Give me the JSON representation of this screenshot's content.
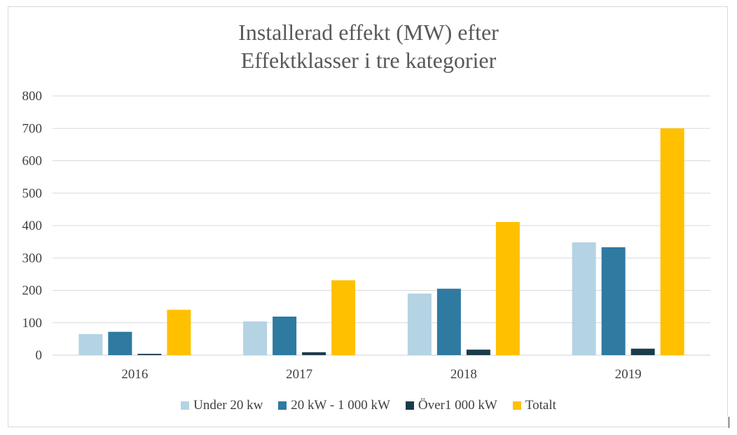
{
  "chart_data": {
    "type": "bar",
    "title_lines": [
      "Installerad effekt (MW) efter",
      "Effektklasser i tre kategorier"
    ],
    "categories": [
      "2016",
      "2017",
      "2018",
      "2019"
    ],
    "series": [
      {
        "name": "Under 20 kw",
        "color": "#b4d3e3",
        "values": [
          65,
          104,
          190,
          348
        ]
      },
      {
        "name": "20 kW - 1 000 kW",
        "color": "#2e7aa1",
        "values": [
          72,
          119,
          205,
          333
        ]
      },
      {
        "name": "Över1 000 kW",
        "color": "#1c3c4b",
        "values": [
          4,
          9,
          17,
          20
        ]
      },
      {
        "name": "Totalt",
        "color": "#ffc000",
        "values": [
          140,
          231,
          411,
          700
        ]
      }
    ],
    "ylim": [
      0,
      800
    ],
    "yticks": [
      0,
      100,
      200,
      300,
      400,
      500,
      600,
      700,
      800
    ],
    "grid": true,
    "legend_position": "bottom",
    "xlabel": "",
    "ylabel": ""
  }
}
